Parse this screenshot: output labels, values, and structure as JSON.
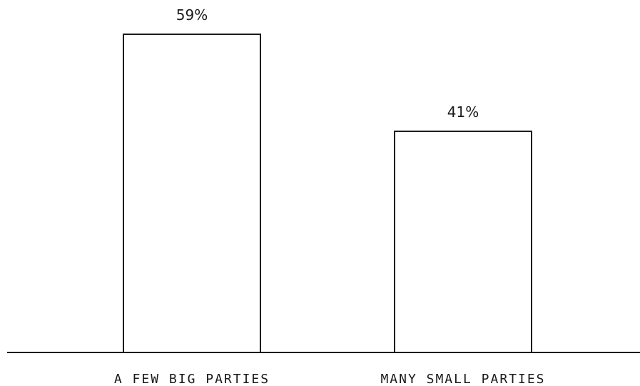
{
  "chart_data": {
    "type": "bar",
    "categories": [
      "A FEW BIG PARTIES",
      "MANY SMALL PARTIES"
    ],
    "values": [
      59,
      41
    ],
    "value_labels": [
      "59%",
      "41%"
    ],
    "title": "",
    "xlabel": "",
    "ylabel": "",
    "ylim": [
      0,
      59
    ],
    "grid": false,
    "colors": {
      "bar_fill": "#ffffff",
      "bar_stroke": "#1a1a1a",
      "text": "#1a1a1a"
    }
  }
}
